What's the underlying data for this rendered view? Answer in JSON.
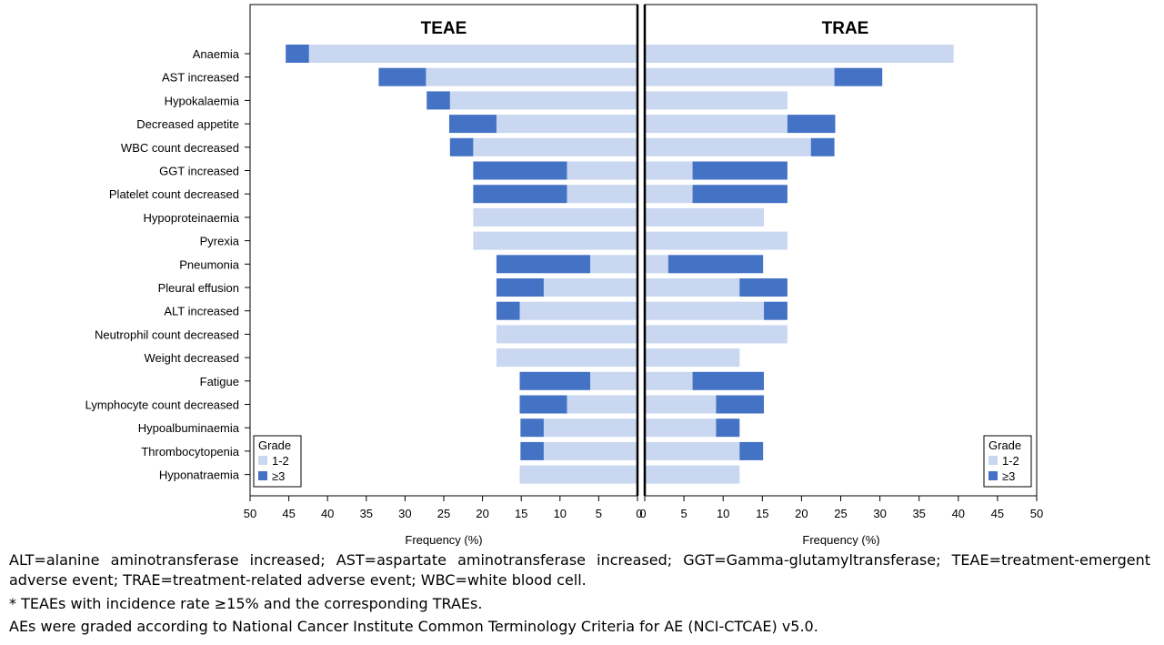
{
  "chart_data": {
    "type": "bar",
    "orientation": "horizontal",
    "layout": "butterfly",
    "categories": [
      "Anaemia",
      "AST increased",
      "Hypokalaemia",
      "Decreased appetite",
      "WBC count decreased",
      "GGT increased",
      "Platelet count decreased",
      "Hypoproteinaemia",
      "Pyrexia",
      "Pneumonia",
      "Pleural effusion",
      "ALT increased",
      "Neutrophil count decreased",
      "Weight decreased",
      "Fatigue",
      "Lymphocyte count decreased",
      "Hypoalbuminaemia",
      "Thrombocytopenia",
      "Hyponatraemia"
    ],
    "xlabel": "Frequency (%)",
    "xlim": [
      0,
      50
    ],
    "xticks": [
      50,
      45,
      40,
      35,
      30,
      25,
      20,
      15,
      10,
      5,
      0
    ],
    "xticks_right": [
      0,
      5,
      10,
      15,
      20,
      25,
      30,
      35,
      40,
      45,
      50
    ],
    "legend": {
      "title": "Grade",
      "placement": "bottom-left / bottom-right",
      "entries": [
        "1-2",
        "≥3"
      ]
    },
    "colors": {
      "grade_1_2": "#c9d7f0",
      "grade_3plus": "#4472c4"
    },
    "panels": [
      {
        "title": "TEAE",
        "direction": "left",
        "series": [
          {
            "name": "1-2",
            "values": [
              42.4,
              27.3,
              24.2,
              18.2,
              21.2,
              9.1,
              9.1,
              21.2,
              21.2,
              6.1,
              12.1,
              15.2,
              18.2,
              18.2,
              6.1,
              9.1,
              12.1,
              12.1,
              15.2
            ]
          },
          {
            "name": "≥3",
            "values": [
              3.0,
              6.1,
              3.0,
              6.1,
              3.0,
              12.1,
              12.1,
              0,
              0,
              12.1,
              6.1,
              3.0,
              0,
              0,
              9.1,
              6.1,
              3.0,
              3.0,
              0
            ]
          }
        ]
      },
      {
        "title": "TRAE",
        "direction": "right",
        "series": [
          {
            "name": "1-2",
            "values": [
              39.4,
              24.2,
              18.2,
              18.2,
              21.2,
              6.1,
              6.1,
              15.2,
              18.2,
              3.0,
              12.1,
              15.2,
              18.2,
              12.1,
              6.1,
              9.1,
              9.1,
              12.1,
              12.1
            ]
          },
          {
            "name": "≥3",
            "values": [
              0,
              6.1,
              0,
              6.1,
              3.0,
              12.1,
              12.1,
              0,
              0,
              12.1,
              6.1,
              3.0,
              0,
              0,
              9.1,
              6.1,
              3.0,
              3.0,
              0
            ]
          }
        ]
      }
    ]
  },
  "footnotes": {
    "line1": "ALT=alanine aminotransferase increased; AST=aspartate aminotransferase increased; GGT=Gamma-glutamyltransferase; TEAE=treatment-emergent",
    "line1b": "adverse event; TRAE=treatment-related adverse event; WBC=white blood cell.",
    "line2": "* TEAEs with incidence rate ≥15% and the corresponding TRAEs.",
    "line3": "AEs were graded according to National Cancer Institute Common Terminology Criteria for AE (NCI-CTCAE) v5.0."
  }
}
